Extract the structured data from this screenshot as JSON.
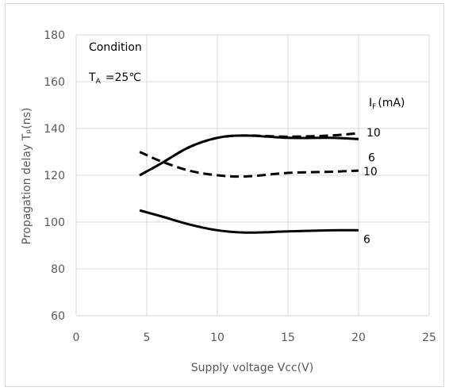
{
  "chart_data": {
    "type": "line",
    "xlabel": "Supply voltage Vcc(V)",
    "ylabel": "Propagation delay Tₚ(ns)",
    "xlim": [
      0,
      25
    ],
    "ylim": [
      60,
      180
    ],
    "x_ticks": [
      "0",
      "5",
      "10",
      "15",
      "20",
      "25"
    ],
    "y_ticks": [
      "60",
      "80",
      "100",
      "120",
      "140",
      "160",
      "180"
    ],
    "grid": true,
    "annotations": {
      "condition": "Condition",
      "temp_prefix": "T",
      "temp_sub": "A",
      "temp_value": "=25℃",
      "if_prefix": "I",
      "if_sub": "F",
      "if_unit": "(mA)"
    },
    "series": [
      {
        "label": "10",
        "style": "dashed",
        "points": [
          [
            4.5,
            120
          ],
          [
            6,
            125
          ],
          [
            8,
            132
          ],
          [
            10,
            136
          ],
          [
            12,
            137
          ],
          [
            15,
            136.5
          ],
          [
            18,
            137
          ],
          [
            20,
            138
          ]
        ]
      },
      {
        "label": "6",
        "style": "solid",
        "points": [
          [
            4.5,
            120
          ],
          [
            6,
            125
          ],
          [
            8,
            132
          ],
          [
            10,
            136
          ],
          [
            12,
            137
          ],
          [
            15,
            136
          ],
          [
            18,
            136
          ],
          [
            20,
            135.5
          ]
        ]
      },
      {
        "label": "10",
        "style": "dashed",
        "points": [
          [
            4.5,
            130
          ],
          [
            6,
            126
          ],
          [
            8,
            122
          ],
          [
            10,
            120
          ],
          [
            12,
            119.5
          ],
          [
            15,
            121
          ],
          [
            18,
            121.5
          ],
          [
            20,
            122
          ]
        ]
      },
      {
        "label": "6",
        "style": "solid",
        "points": [
          [
            4.5,
            105
          ],
          [
            6,
            102.5
          ],
          [
            8,
            99
          ],
          [
            10,
            96.5
          ],
          [
            12,
            95.5
          ],
          [
            15,
            96
          ],
          [
            18,
            96.5
          ],
          [
            20,
            96.5
          ]
        ]
      }
    ]
  }
}
